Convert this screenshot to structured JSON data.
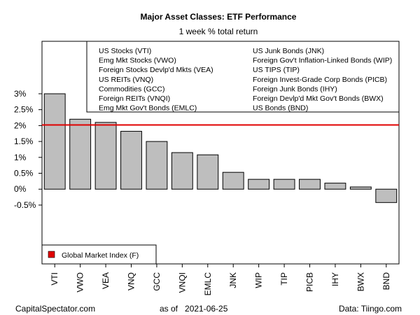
{
  "chart_data": {
    "type": "bar",
    "title": "Major Asset Classes: ETF Performance",
    "subtitle": "1 week % total return",
    "categories": [
      "VTI",
      "VWO",
      "VEA",
      "VNQ",
      "GCC",
      "VNQI",
      "EMLC",
      "JNK",
      "WIP",
      "TIP",
      "PICB",
      "IHY",
      "BWX",
      "BND"
    ],
    "values": [
      3.0,
      2.2,
      2.1,
      1.82,
      1.5,
      1.15,
      1.08,
      0.53,
      0.31,
      0.31,
      0.31,
      0.19,
      0.07,
      -0.42
    ],
    "ylim": [
      -2.35,
      4.65
    ],
    "yticks": [
      3,
      2.5,
      2,
      1.5,
      1,
      0.5,
      0,
      -0.5
    ],
    "ytick_labels": [
      "3%",
      "2.5%",
      "2%",
      "1.5%",
      "1%",
      "0.5%",
      "0%",
      "-0.5%"
    ],
    "bar_color": "#bebebe",
    "reference_line": {
      "label": "Global Market Index (F)",
      "value": 2.02,
      "color": "#e00000"
    },
    "legend_entries": [
      "US Stocks (VTI)",
      "Emg Mkt Stocks (VWO)",
      "Foreign Stocks Devlp'd Mkts (VEA)",
      "US REITs (VNQ)",
      "Commodities (GCC)",
      "Foreign REITs (VNQI)",
      "Emg Mkt Gov't Bonds (EMLC)",
      "US Junk Bonds (JNK)",
      "Foreign Gov't Inflation-Linked Bonds (WIP)",
      "US TIPS (TIP)",
      "Foreign Invest-Grade Corp Bonds (PICB)",
      "Foreign Junk Bonds (IHY)",
      "Foreign Devlp'd Mkt Gov't Bonds (BWX)",
      "US Bonds (BND)"
    ],
    "legend_placement": "top-right",
    "grid": false
  },
  "footer": {
    "left": "CapitalSpectator.com",
    "center": "as of   2021-06-25",
    "right": "Data: Tiingo.com"
  }
}
